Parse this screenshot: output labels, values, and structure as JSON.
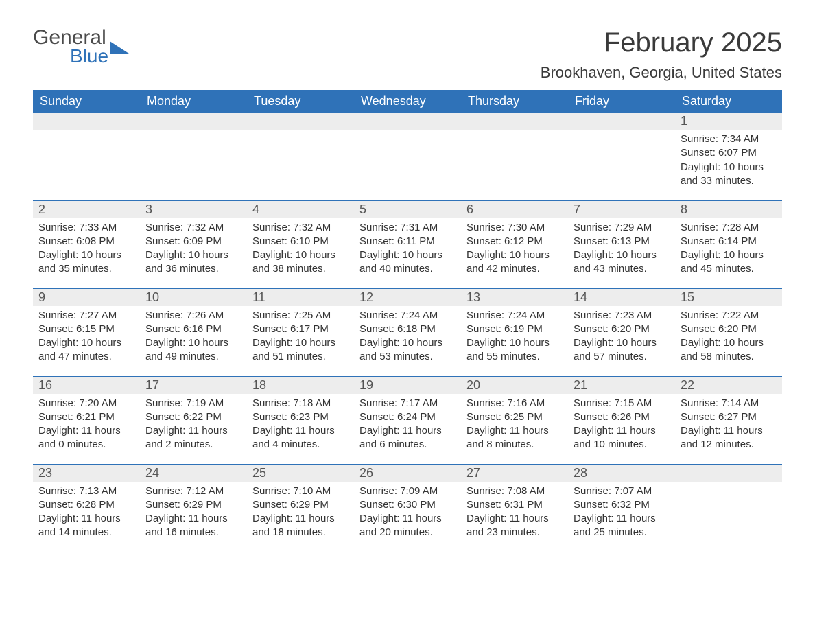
{
  "logo": {
    "word1": "General",
    "word2": "Blue"
  },
  "colors": {
    "brand_blue": "#2f72b8",
    "header_text": "#ffffff",
    "daynum_bg": "#ededed",
    "daynum_text": "#555555",
    "body_text": "#333333",
    "title_text": "#3a3a3a",
    "background": "#ffffff"
  },
  "title": "February 2025",
  "location": "Brookhaven, Georgia, United States",
  "weekday_headers": [
    "Sunday",
    "Monday",
    "Tuesday",
    "Wednesday",
    "Thursday",
    "Friday",
    "Saturday"
  ],
  "weeks": [
    [
      {
        "empty": true
      },
      {
        "empty": true
      },
      {
        "empty": true
      },
      {
        "empty": true
      },
      {
        "empty": true
      },
      {
        "empty": true
      },
      {
        "day": "1",
        "sunrise": "Sunrise: 7:34 AM",
        "sunset": "Sunset: 6:07 PM",
        "daylight": "Daylight: 10 hours and 33 minutes."
      }
    ],
    [
      {
        "day": "2",
        "sunrise": "Sunrise: 7:33 AM",
        "sunset": "Sunset: 6:08 PM",
        "daylight": "Daylight: 10 hours and 35 minutes."
      },
      {
        "day": "3",
        "sunrise": "Sunrise: 7:32 AM",
        "sunset": "Sunset: 6:09 PM",
        "daylight": "Daylight: 10 hours and 36 minutes."
      },
      {
        "day": "4",
        "sunrise": "Sunrise: 7:32 AM",
        "sunset": "Sunset: 6:10 PM",
        "daylight": "Daylight: 10 hours and 38 minutes."
      },
      {
        "day": "5",
        "sunrise": "Sunrise: 7:31 AM",
        "sunset": "Sunset: 6:11 PM",
        "daylight": "Daylight: 10 hours and 40 minutes."
      },
      {
        "day": "6",
        "sunrise": "Sunrise: 7:30 AM",
        "sunset": "Sunset: 6:12 PM",
        "daylight": "Daylight: 10 hours and 42 minutes."
      },
      {
        "day": "7",
        "sunrise": "Sunrise: 7:29 AM",
        "sunset": "Sunset: 6:13 PM",
        "daylight": "Daylight: 10 hours and 43 minutes."
      },
      {
        "day": "8",
        "sunrise": "Sunrise: 7:28 AM",
        "sunset": "Sunset: 6:14 PM",
        "daylight": "Daylight: 10 hours and 45 minutes."
      }
    ],
    [
      {
        "day": "9",
        "sunrise": "Sunrise: 7:27 AM",
        "sunset": "Sunset: 6:15 PM",
        "daylight": "Daylight: 10 hours and 47 minutes."
      },
      {
        "day": "10",
        "sunrise": "Sunrise: 7:26 AM",
        "sunset": "Sunset: 6:16 PM",
        "daylight": "Daylight: 10 hours and 49 minutes."
      },
      {
        "day": "11",
        "sunrise": "Sunrise: 7:25 AM",
        "sunset": "Sunset: 6:17 PM",
        "daylight": "Daylight: 10 hours and 51 minutes."
      },
      {
        "day": "12",
        "sunrise": "Sunrise: 7:24 AM",
        "sunset": "Sunset: 6:18 PM",
        "daylight": "Daylight: 10 hours and 53 minutes."
      },
      {
        "day": "13",
        "sunrise": "Sunrise: 7:24 AM",
        "sunset": "Sunset: 6:19 PM",
        "daylight": "Daylight: 10 hours and 55 minutes."
      },
      {
        "day": "14",
        "sunrise": "Sunrise: 7:23 AM",
        "sunset": "Sunset: 6:20 PM",
        "daylight": "Daylight: 10 hours and 57 minutes."
      },
      {
        "day": "15",
        "sunrise": "Sunrise: 7:22 AM",
        "sunset": "Sunset: 6:20 PM",
        "daylight": "Daylight: 10 hours and 58 minutes."
      }
    ],
    [
      {
        "day": "16",
        "sunrise": "Sunrise: 7:20 AM",
        "sunset": "Sunset: 6:21 PM",
        "daylight": "Daylight: 11 hours and 0 minutes."
      },
      {
        "day": "17",
        "sunrise": "Sunrise: 7:19 AM",
        "sunset": "Sunset: 6:22 PM",
        "daylight": "Daylight: 11 hours and 2 minutes."
      },
      {
        "day": "18",
        "sunrise": "Sunrise: 7:18 AM",
        "sunset": "Sunset: 6:23 PM",
        "daylight": "Daylight: 11 hours and 4 minutes."
      },
      {
        "day": "19",
        "sunrise": "Sunrise: 7:17 AM",
        "sunset": "Sunset: 6:24 PM",
        "daylight": "Daylight: 11 hours and 6 minutes."
      },
      {
        "day": "20",
        "sunrise": "Sunrise: 7:16 AM",
        "sunset": "Sunset: 6:25 PM",
        "daylight": "Daylight: 11 hours and 8 minutes."
      },
      {
        "day": "21",
        "sunrise": "Sunrise: 7:15 AM",
        "sunset": "Sunset: 6:26 PM",
        "daylight": "Daylight: 11 hours and 10 minutes."
      },
      {
        "day": "22",
        "sunrise": "Sunrise: 7:14 AM",
        "sunset": "Sunset: 6:27 PM",
        "daylight": "Daylight: 11 hours and 12 minutes."
      }
    ],
    [
      {
        "day": "23",
        "sunrise": "Sunrise: 7:13 AM",
        "sunset": "Sunset: 6:28 PM",
        "daylight": "Daylight: 11 hours and 14 minutes."
      },
      {
        "day": "24",
        "sunrise": "Sunrise: 7:12 AM",
        "sunset": "Sunset: 6:29 PM",
        "daylight": "Daylight: 11 hours and 16 minutes."
      },
      {
        "day": "25",
        "sunrise": "Sunrise: 7:10 AM",
        "sunset": "Sunset: 6:29 PM",
        "daylight": "Daylight: 11 hours and 18 minutes."
      },
      {
        "day": "26",
        "sunrise": "Sunrise: 7:09 AM",
        "sunset": "Sunset: 6:30 PM",
        "daylight": "Daylight: 11 hours and 20 minutes."
      },
      {
        "day": "27",
        "sunrise": "Sunrise: 7:08 AM",
        "sunset": "Sunset: 6:31 PM",
        "daylight": "Daylight: 11 hours and 23 minutes."
      },
      {
        "day": "28",
        "sunrise": "Sunrise: 7:07 AM",
        "sunset": "Sunset: 6:32 PM",
        "daylight": "Daylight: 11 hours and 25 minutes."
      },
      {
        "empty": true
      }
    ]
  ]
}
